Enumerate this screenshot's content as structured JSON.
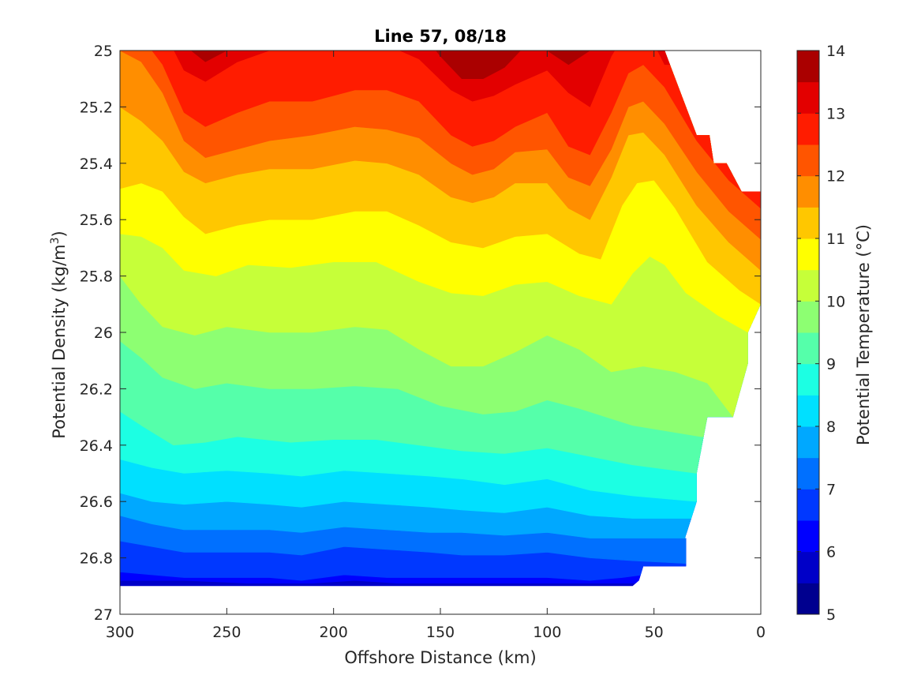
{
  "chart_data": {
    "type": "contourf",
    "title": "Line 57, 08/18",
    "xlabel": "Offshore Distance (km)",
    "ylabel_prefix": "Potential Density (kg/m",
    "ylabel_sup": "3",
    "ylabel_suffix": ")",
    "colorbar_label": "Potential Temperature (°C)",
    "xlim": [
      300,
      0
    ],
    "x_reversed": true,
    "ylim": [
      25,
      27
    ],
    "y_reversed": true,
    "xticks": [
      300,
      250,
      200,
      150,
      100,
      50,
      0
    ],
    "xtick_labels": [
      "300",
      "250",
      "200",
      "150",
      "100",
      "50",
      "0"
    ],
    "yticks": [
      25,
      25.2,
      25.4,
      25.6,
      25.8,
      26,
      26.2,
      26.4,
      26.6,
      26.8,
      27
    ],
    "ytick_labels": [
      "25",
      "25.2",
      "25.4",
      "25.6",
      "25.8",
      "26",
      "26.2",
      "26.4",
      "26.6",
      "26.8",
      "27"
    ],
    "colorbar_ticks": [
      5,
      6,
      7,
      8,
      9,
      10,
      11,
      12,
      13,
      14
    ],
    "colorbar_tick_labels": [
      "5",
      "6",
      "7",
      "8",
      "9",
      "10",
      "11",
      "12",
      "13",
      "14"
    ],
    "clim": [
      5,
      14
    ],
    "levels": [
      5,
      5.5,
      6,
      6.5,
      7,
      7.5,
      8,
      8.5,
      9,
      9.5,
      10,
      10.5,
      11,
      11.5,
      12,
      12.5,
      13,
      13.5,
      14
    ],
    "level_colors": [
      "#00008f",
      "#0000c8",
      "#0000ff",
      "#0038ff",
      "#0070ff",
      "#00a8ff",
      "#00e0ff",
      "#1cffe3",
      "#55ffaa",
      "#8dff72",
      "#c6ff39",
      "#ffff00",
      "#ffc700",
      "#ff8e00",
      "#ff5500",
      "#ff1c00",
      "#e30000",
      "#aa0000"
    ],
    "boundary": {
      "bottom_density": [
        [
          300,
          26.9
        ],
        [
          60,
          26.9
        ],
        [
          57,
          26.88
        ],
        [
          55,
          26.83
        ],
        [
          35,
          26.83
        ],
        [
          35,
          26.73
        ],
        [
          35.5,
          26.73
        ],
        [
          30,
          26.6
        ],
        [
          30,
          26.5
        ],
        [
          25,
          26.3
        ],
        [
          13,
          26.3
        ],
        [
          6,
          26.11
        ],
        [
          6,
          26
        ],
        [
          0,
          25.9
        ],
        [
          0,
          25.5
        ],
        [
          9,
          25.5
        ],
        [
          16,
          25.4
        ],
        [
          22,
          25.4
        ],
        [
          24,
          25.3
        ],
        [
          30,
          25.3
        ],
        [
          33,
          25.24
        ],
        [
          45,
          25.0
        ]
      ]
    },
    "isotherms": [
      {
        "t": 6,
        "x": [
          300,
          290,
          270,
          240,
          210,
          190,
          170,
          150,
          120,
          100,
          80,
          60
        ],
        "y": [
          26.88,
          26.88,
          26.88,
          26.89,
          26.89,
          26.88,
          26.89,
          26.89,
          26.89,
          26.89,
          26.89,
          26.89
        ]
      },
      {
        "t": 6.5,
        "x": [
          300,
          285,
          270,
          250,
          230,
          215,
          195,
          175,
          155,
          140,
          120,
          100,
          80,
          65,
          55
        ],
        "y": [
          26.85,
          26.86,
          26.87,
          26.87,
          26.87,
          26.88,
          26.86,
          26.87,
          26.87,
          26.87,
          26.87,
          26.87,
          26.88,
          26.87,
          26.86
        ]
      },
      {
        "t": 7,
        "x": [
          300,
          285,
          270,
          250,
          230,
          215,
          195,
          175,
          155,
          140,
          120,
          100,
          80,
          60,
          35
        ],
        "y": [
          26.74,
          26.76,
          26.78,
          26.78,
          26.78,
          26.79,
          26.76,
          26.77,
          26.78,
          26.79,
          26.79,
          26.78,
          26.8,
          26.81,
          26.82
        ]
      },
      {
        "t": 7.5,
        "x": [
          300,
          285,
          270,
          250,
          230,
          215,
          195,
          175,
          155,
          140,
          120,
          100,
          80,
          60,
          35
        ],
        "y": [
          26.65,
          26.68,
          26.7,
          26.7,
          26.7,
          26.71,
          26.69,
          26.7,
          26.71,
          26.71,
          26.72,
          26.71,
          26.73,
          26.73,
          26.73
        ]
      },
      {
        "t": 8,
        "x": [
          300,
          285,
          270,
          250,
          230,
          215,
          195,
          175,
          155,
          140,
          120,
          100,
          80,
          60,
          35
        ],
        "y": [
          26.57,
          26.6,
          26.61,
          26.6,
          26.61,
          26.62,
          26.6,
          26.61,
          26.62,
          26.63,
          26.64,
          26.62,
          26.65,
          26.66,
          26.66
        ]
      },
      {
        "t": 8.5,
        "x": [
          300,
          285,
          270,
          250,
          230,
          215,
          195,
          175,
          155,
          140,
          120,
          100,
          80,
          60,
          30
        ],
        "y": [
          26.45,
          26.48,
          26.5,
          26.49,
          26.5,
          26.51,
          26.49,
          26.5,
          26.51,
          26.52,
          26.54,
          26.52,
          26.56,
          26.58,
          26.6
        ]
      },
      {
        "t": 9,
        "x": [
          300,
          290,
          275,
          260,
          245,
          220,
          200,
          180,
          160,
          140,
          120,
          100,
          80,
          60,
          30
        ],
        "y": [
          26.28,
          26.33,
          26.4,
          26.39,
          26.37,
          26.39,
          26.38,
          26.38,
          26.4,
          26.42,
          26.43,
          26.41,
          26.44,
          26.47,
          26.5
        ]
      },
      {
        "t": 9.5,
        "x": [
          300,
          290,
          280,
          265,
          250,
          230,
          210,
          190,
          170,
          150,
          130,
          115,
          100,
          85,
          60,
          28
        ],
        "y": [
          26.03,
          26.09,
          26.16,
          26.2,
          26.18,
          26.2,
          26.2,
          26.19,
          26.2,
          26.26,
          26.29,
          26.28,
          26.24,
          26.27,
          26.33,
          26.37
        ]
      },
      {
        "t": 10,
        "x": [
          300,
          290,
          280,
          265,
          250,
          230,
          210,
          190,
          175,
          160,
          145,
          130,
          115,
          100,
          85,
          70,
          55,
          40,
          25,
          13
        ],
        "y": [
          25.8,
          25.9,
          25.98,
          26.01,
          25.98,
          26.0,
          26.0,
          25.98,
          25.99,
          26.06,
          26.12,
          26.12,
          26.07,
          26.01,
          26.06,
          26.14,
          26.12,
          26.14,
          26.18,
          26.3
        ]
      },
      {
        "t": 10.5,
        "x": [
          300,
          290,
          280,
          270,
          255,
          240,
          220,
          200,
          180,
          160,
          145,
          130,
          115,
          100,
          85,
          70,
          60,
          52,
          45,
          35,
          20,
          6
        ],
        "y": [
          25.65,
          25.66,
          25.7,
          25.78,
          25.8,
          25.76,
          25.77,
          25.75,
          25.75,
          25.82,
          25.86,
          25.87,
          25.83,
          25.82,
          25.87,
          25.9,
          25.79,
          25.73,
          25.76,
          25.86,
          25.94,
          26.0
        ]
      },
      {
        "t": 11,
        "x": [
          300,
          290,
          280,
          270,
          260,
          245,
          230,
          210,
          190,
          175,
          160,
          145,
          130,
          115,
          100,
          85,
          75,
          65,
          58,
          50,
          40,
          25,
          10,
          0
        ],
        "y": [
          25.49,
          25.47,
          25.5,
          25.59,
          25.65,
          25.62,
          25.6,
          25.6,
          25.57,
          25.57,
          25.62,
          25.68,
          25.7,
          25.66,
          25.65,
          25.72,
          25.74,
          25.55,
          25.47,
          25.46,
          25.56,
          25.75,
          25.85,
          25.9
        ]
      },
      {
        "t": 11.5,
        "x": [
          300,
          290,
          280,
          270,
          260,
          245,
          230,
          210,
          190,
          175,
          160,
          145,
          135,
          125,
          115,
          100,
          90,
          80,
          70,
          62,
          55,
          45,
          30,
          15,
          0
        ],
        "y": [
          25.2,
          25.25,
          25.32,
          25.43,
          25.47,
          25.44,
          25.42,
          25.42,
          25.39,
          25.4,
          25.44,
          25.52,
          25.54,
          25.52,
          25.47,
          25.47,
          25.56,
          25.6,
          25.45,
          25.3,
          25.29,
          25.37,
          25.55,
          25.68,
          25.78
        ]
      },
      {
        "t": 12,
        "x": [
          300,
          290,
          280,
          270,
          260,
          245,
          230,
          210,
          190,
          175,
          160,
          145,
          135,
          125,
          115,
          100,
          90,
          80,
          70,
          62,
          55,
          45,
          30,
          15,
          0
        ],
        "y": [
          25.0,
          25.04,
          25.15,
          25.32,
          25.38,
          25.35,
          25.32,
          25.3,
          25.27,
          25.28,
          25.31,
          25.4,
          25.44,
          25.42,
          25.36,
          25.35,
          25.45,
          25.48,
          25.35,
          25.2,
          25.18,
          25.26,
          25.43,
          25.57,
          25.67
        ]
      },
      {
        "t": 12.5,
        "x": [
          300,
          290,
          280,
          270,
          260,
          245,
          230,
          210,
          190,
          175,
          160,
          145,
          135,
          125,
          115,
          100,
          90,
          80,
          70,
          62,
          55,
          45,
          30,
          15,
          0
        ],
        "y": [
          24.9,
          24.95,
          25.05,
          25.22,
          25.27,
          25.22,
          25.18,
          25.18,
          25.14,
          25.14,
          25.18,
          25.3,
          25.34,
          25.32,
          25.27,
          25.22,
          25.34,
          25.37,
          25.22,
          25.08,
          25.05,
          25.13,
          25.32,
          25.46,
          25.56
        ]
      },
      {
        "t": 13,
        "x": [
          300,
          290,
          280,
          270,
          260,
          245,
          230,
          210,
          190,
          175,
          160,
          145,
          135,
          125,
          115,
          100,
          90,
          80,
          70,
          62,
          55,
          45
        ],
        "y": [
          24.8,
          24.85,
          24.92,
          25.07,
          25.11,
          25.04,
          25.0,
          25.0,
          24.98,
          24.98,
          25.03,
          25.14,
          25.18,
          25.16,
          25.12,
          25.07,
          25.15,
          25.2,
          25.02,
          24.92,
          24.9,
          25.05
        ]
      },
      {
        "t": 13.5,
        "x": [
          300,
          290,
          280,
          270,
          260,
          245,
          230,
          210,
          190,
          175,
          160,
          150,
          140,
          130,
          120,
          110,
          100,
          90,
          80,
          70,
          60
        ],
        "y": [
          24.7,
          24.72,
          24.8,
          24.98,
          25.04,
          24.98,
          24.9,
          24.9,
          24.88,
          24.88,
          24.92,
          25.02,
          25.1,
          25.1,
          25.06,
          24.98,
          25.0,
          25.05,
          25.0,
          24.9,
          24.82
        ]
      }
    ]
  }
}
